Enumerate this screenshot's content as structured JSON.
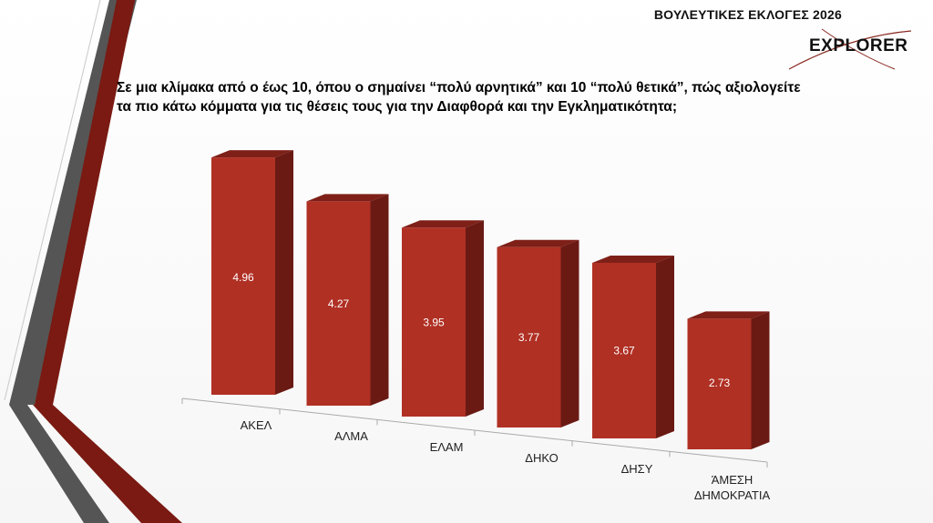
{
  "header": {
    "title": "ΒΟΥΛΕΥΤΙΚΕΣ ΕΚΛΟΓΕΣ 2026"
  },
  "logo": {
    "text": "EXPLORER"
  },
  "question": {
    "line1": "Σε μια κλίμακα από ο έως 10, όπου ο σημαίνει “πολύ αρνητικά” και 10 “πολύ θετικά”, πώς αξιολογείτε",
    "line2": "τα πιο κάτω κόμματα για τις θέσεις τους για την Διαφθορά και την Εγκληματικότητα;"
  },
  "colors": {
    "bar_front": "#b03024",
    "bar_top": "#7e2018",
    "bar_side": "#6a1a13",
    "accent_dark_red": "#7a1a12",
    "accent_gray": "#555555"
  },
  "chart_data": {
    "type": "bar",
    "title": "",
    "xlabel": "",
    "ylabel": "",
    "ylim": [
      0,
      5.4
    ],
    "grid": false,
    "legend": "none",
    "style": "3d-columns",
    "categories": [
      "ΑΚΕΛ",
      "ΑΛΜΑ",
      "ΕΛΑΜ",
      "ΔΗΚΟ",
      "ΔΗΣΥ",
      "ΆΜΕΣΗ ΔΗΜΟΚΡΑΤΙΑ"
    ],
    "category_lines": [
      [
        "ΑΚΕΛ"
      ],
      [
        "ΑΛΜΑ"
      ],
      [
        "ΕΛΑΜ"
      ],
      [
        "ΔΗΚΟ"
      ],
      [
        "ΔΗΣΥ"
      ],
      [
        "ΆΜΕΣΗ",
        "ΔΗΜΟΚΡΑΤΙΑ"
      ]
    ],
    "values": [
      4.96,
      4.27,
      3.95,
      3.77,
      3.67,
      2.73
    ],
    "data_labels": [
      "4.96",
      "4.27",
      "3.95",
      "3.77",
      "3.67",
      "2.73"
    ]
  }
}
